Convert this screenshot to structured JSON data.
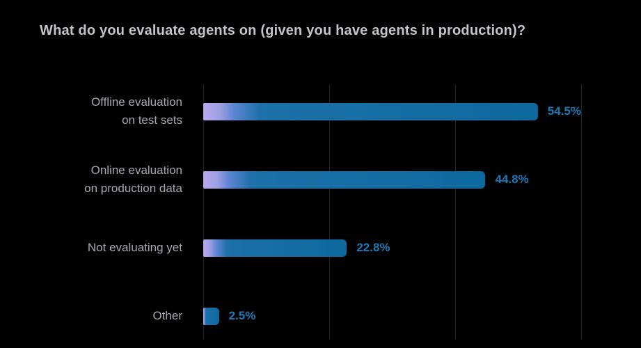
{
  "title": "What do you evaluate agents on (given you have agents in production)?",
  "chart_data": {
    "type": "bar",
    "orientation": "horizontal",
    "title": "What do you evaluate agents on (given you have agents in production)?",
    "categories": [
      "Offline evaluation\non test sets",
      "Online evaluation\non production data",
      "Not evaluating yet",
      "Other"
    ],
    "values": [
      54.5,
      44.8,
      22.8,
      2.5
    ],
    "value_labels": [
      "54.5%",
      "44.8%",
      "22.8%",
      "2.5%"
    ],
    "xlabel": "",
    "ylabel": "",
    "xlim": [
      0,
      60
    ],
    "gridline_values": [
      0,
      20,
      40,
      60
    ],
    "grid": "vertical-only",
    "legend": "none",
    "colors": {
      "background": "#010101",
      "title_text": "#c6c4c8",
      "category_text": "#aba6b0",
      "value_text": "#1f79b6",
      "gridline": "#232327",
      "bar_gradient_start": "#b9aaee",
      "bar_gradient_mid": "#5f86d4",
      "bar_main": "#0e699f"
    }
  }
}
